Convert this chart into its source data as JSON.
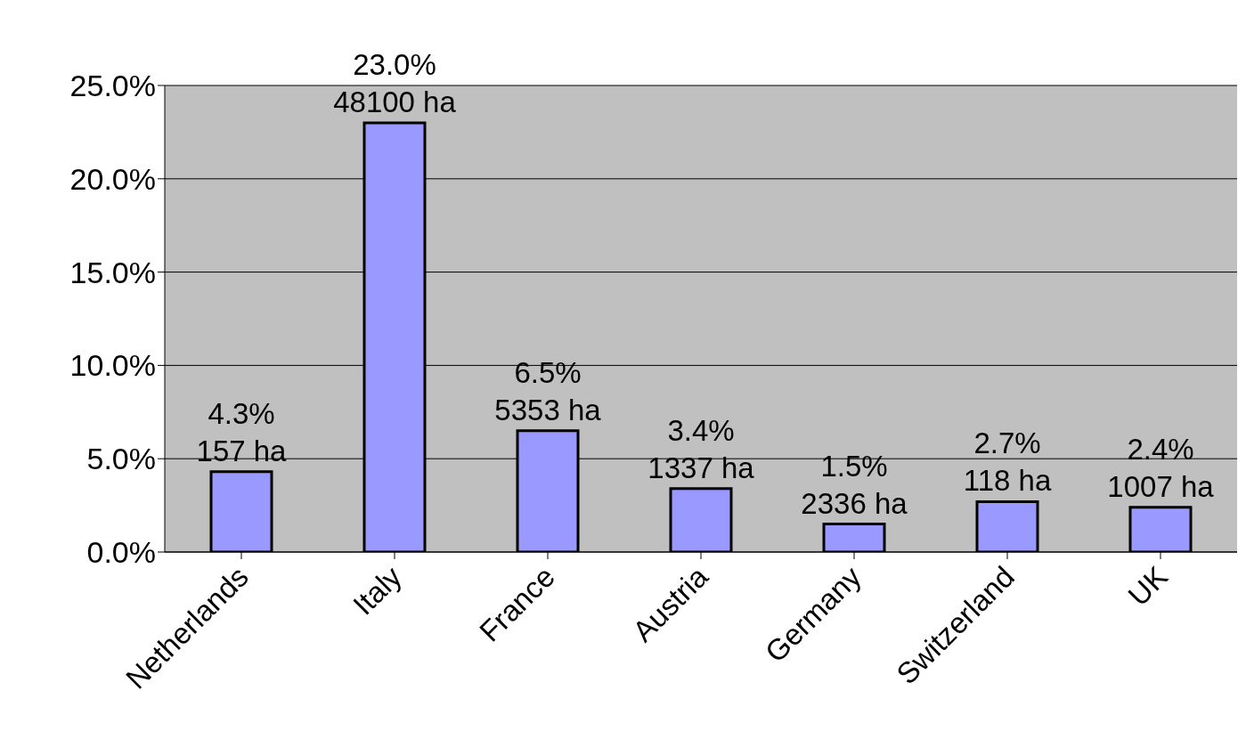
{
  "chart_data": {
    "type": "bar",
    "categories": [
      "Netherlands",
      "Italy",
      "France",
      "Austria",
      "Germany",
      "Switzerland",
      "UK"
    ],
    "values": [
      4.3,
      23.0,
      6.5,
      3.4,
      1.5,
      2.7,
      2.4
    ],
    "value_labels": [
      "4.3%\n157 ha",
      "23.0%\n48100 ha",
      "6.5%\n5353 ha",
      "3.4%\n1337 ha",
      "1.5%\n2336 ha",
      "2.7%\n118 ha",
      "2.4%\n1007 ha"
    ],
    "color": "#9999ff",
    "ylim": [
      0,
      25
    ],
    "yticks": [
      {
        "value": 0,
        "label": "0.0%"
      },
      {
        "value": 5,
        "label": "5.0%"
      },
      {
        "value": 10,
        "label": "10.0%"
      },
      {
        "value": 15,
        "label": "15.0%"
      },
      {
        "value": 20,
        "label": "20.0%"
      },
      {
        "value": 25,
        "label": "25.0%"
      }
    ],
    "grid": "y"
  }
}
